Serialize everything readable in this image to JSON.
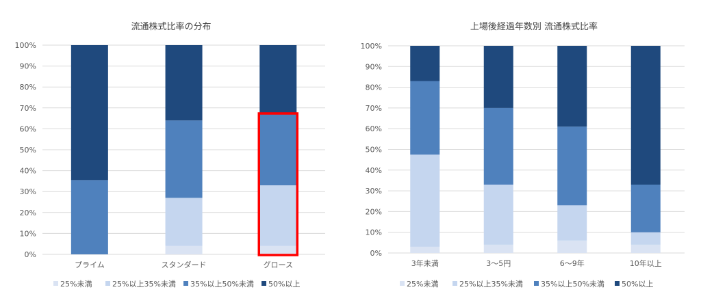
{
  "colors": {
    "s25": "#dae3f3",
    "s25_35": "#c5d6ef",
    "s35_50": "#4f81bd",
    "s50": "#1f497d",
    "grid": "#d9d9d9",
    "highlight": "#ff0000"
  },
  "legend": [
    "25%未満",
    "25%以上35%未満",
    "35%以上50%未満",
    "50%以上"
  ],
  "chart_data": [
    {
      "type": "bar",
      "stacked": true,
      "title": "流通株式比率の分布",
      "categories": [
        "プライム",
        "スタンダード",
        "グロース"
      ],
      "series": [
        {
          "name": "25%未満",
          "values": [
            0,
            4,
            4
          ]
        },
        {
          "name": "25%以上35%未満",
          "values": [
            0,
            23,
            29
          ]
        },
        {
          "name": "35%以上50%未満",
          "values": [
            35.5,
            37,
            34
          ]
        },
        {
          "name": "50%以上",
          "values": [
            64.5,
            36,
            33
          ]
        }
      ],
      "ylim": [
        0,
        100
      ],
      "yticks": [
        "0%",
        "10%",
        "20%",
        "30%",
        "40%",
        "50%",
        "60%",
        "70%",
        "80%",
        "90%",
        "100%"
      ],
      "grid": true,
      "legend_position": "bottom",
      "highlight_category": "グロース"
    },
    {
      "type": "bar",
      "stacked": true,
      "title": "上場後経過年数別 流通株式比率",
      "categories": [
        "3年未満",
        "3～5円",
        "6～9年",
        "10年以上"
      ],
      "series": [
        {
          "name": "25%未満",
          "values": [
            3,
            4,
            6,
            4
          ]
        },
        {
          "name": "25%以上35%未満",
          "values": [
            44.5,
            29,
            17,
            6
          ]
        },
        {
          "name": "35%以上50%未満",
          "values": [
            35.5,
            37,
            38,
            23
          ]
        },
        {
          "name": "50%以上",
          "values": [
            17,
            30,
            39,
            67
          ]
        }
      ],
      "ylim": [
        0,
        100
      ],
      "yticks": [
        "0%",
        "10%",
        "20%",
        "30%",
        "40%",
        "50%",
        "60%",
        "70%",
        "80%",
        "90%",
        "100%"
      ],
      "grid": true,
      "legend_position": "bottom"
    }
  ]
}
